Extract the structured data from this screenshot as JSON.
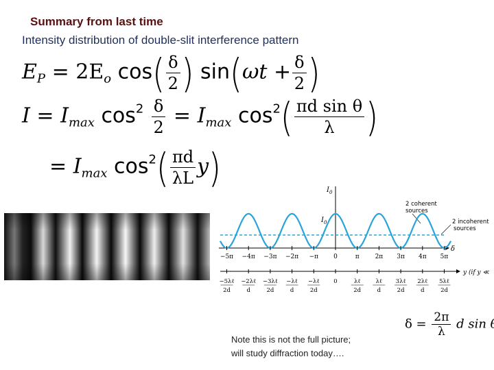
{
  "header": {
    "title": "Summary from last time",
    "subtitle": "Intensity distribution of double-slit interference pattern"
  },
  "equations": {
    "ep_lhs": "E",
    "ep_lhs_sub": "P",
    "ep_coef": "= 2E",
    "ep_coef_sub": "o",
    "cos": "cos",
    "sin": "sin",
    "delta": "δ",
    "two": "2",
    "omega_t": "ωt +",
    "i_lhs": "I =",
    "i_max": "I",
    "max_sub": "max",
    "cos2": "cos",
    "sq": "2",
    "equals": "=",
    "pi_d_sin": "πd sin θ",
    "lambda": "λ",
    "pi_d": "πd",
    "lambda_L": "λL",
    "y": "y"
  },
  "graph": {
    "y_axis_top": "I",
    "y_axis_top_sub": "0",
    "i0_label": "I",
    "i0_sub": "0",
    "legend_coherent": [
      "2 coherent",
      "sources"
    ],
    "legend_incoherent": [
      "2 incoherent",
      "sources"
    ],
    "delta_axis_label": "δ",
    "delta_ticks": [
      "−5π",
      "−4π",
      "−3π",
      "−2π",
      "−π",
      "0",
      "π",
      "2π",
      "3π",
      "4π",
      "5π"
    ],
    "y_axis_label": "y (if y ≪ ℓ)",
    "y_ticks_num": [
      "−5λℓ",
      "−2λℓ",
      "−3λℓ",
      "−λℓ",
      "−λℓ",
      "0",
      "λℓ",
      "λℓ",
      "3λℓ",
      "2λℓ",
      "5λℓ"
    ],
    "y_ticks_den": [
      "2d",
      "d",
      "2d",
      "d",
      "2d",
      "",
      "2d",
      "d",
      "2d",
      "d",
      "2d"
    ],
    "coherent_color": "#29a3d8",
    "incoherent_color": "#29a3d8"
  },
  "delta_formula": {
    "lhs": "δ =",
    "num": "2π",
    "den": "λ",
    "rhs": "d sin θ"
  },
  "note": {
    "line1": "Note this is not the full picture;",
    "line2": "will study diffraction today…."
  },
  "photo": {
    "description_icon": "interference-fringes-photo"
  }
}
